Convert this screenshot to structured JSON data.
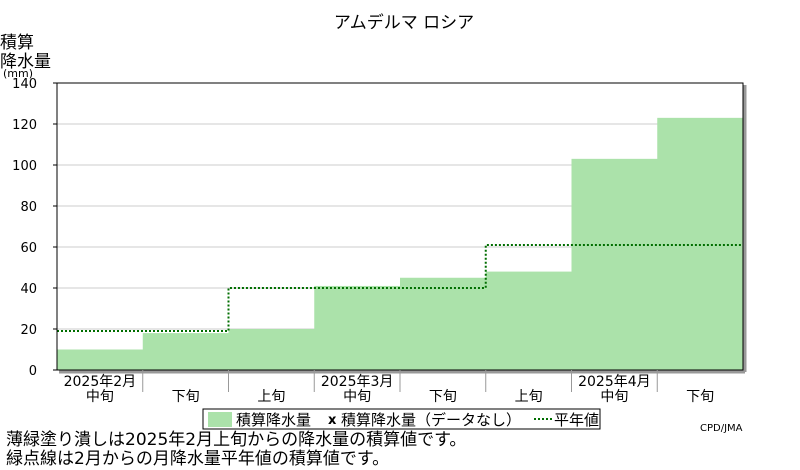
{
  "chart_data": {
    "type": "area",
    "title": "アムデルマ ロシア",
    "ylabel_lines": [
      "積算",
      "降水量",
      "(mm)"
    ],
    "ylim": [
      0,
      140
    ],
    "yticks": [
      0,
      20,
      40,
      60,
      80,
      100,
      120,
      140
    ],
    "periods": [
      "2025年2月 中旬",
      "2025年2月 下旬",
      "2025年3月 上旬",
      "2025年3月 中旬",
      "2025年3月 下旬",
      "2025年4月 上旬",
      "2025年4月 中旬",
      "2025年4月 下旬"
    ],
    "period_labels": [
      "中旬",
      "下旬",
      "上旬",
      "中旬",
      "下旬",
      "上旬",
      "中旬",
      "下旬"
    ],
    "month_labels": [
      {
        "label": "2025年2月",
        "period_index": 0
      },
      {
        "label": "2025年3月",
        "period_index": 3
      },
      {
        "label": "2025年4月",
        "period_index": 6
      }
    ],
    "grid": true,
    "series": [
      {
        "name": "積算降水量",
        "type": "area-step",
        "color": "#abe2aa",
        "values": [
          10,
          18,
          20,
          41,
          45,
          48,
          103,
          123
        ]
      },
      {
        "name": "積算降水量（データなし）",
        "type": "marker",
        "marker": "x",
        "values": []
      },
      {
        "name": "平年値",
        "type": "dotted-step",
        "color": "#006e00",
        "values": [
          19,
          19,
          40,
          40,
          40,
          61,
          61,
          61
        ]
      }
    ],
    "legend": "bottom-center"
  },
  "credit": "CPD/JMA",
  "notes": [
    "薄緑塗り潰しは2025年2月上旬からの降水量の積算値です。",
    "緑点線は2月からの月降水量平年値の積算値です。"
  ]
}
